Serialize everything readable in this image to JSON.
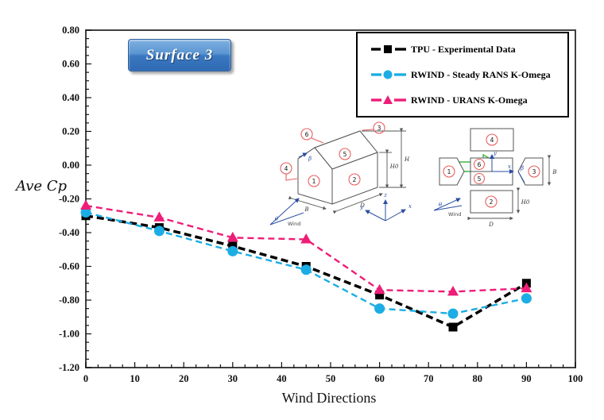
{
  "chart_data": {
    "type": "line",
    "x": [
      0,
      15,
      30,
      45,
      60,
      75,
      90
    ],
    "series": [
      {
        "name": "TPU - Experimental Data",
        "color": "#000000",
        "marker": "square",
        "values": [
          -0.3,
          -0.37,
          -0.48,
          -0.6,
          -0.77,
          -0.96,
          -0.7
        ]
      },
      {
        "name": "RWIND - Steady RANS K-Omega",
        "color": "#1CADE4",
        "marker": "circle",
        "values": [
          -0.28,
          -0.39,
          -0.51,
          -0.62,
          -0.85,
          -0.88,
          -0.79
        ]
      },
      {
        "name": "RWIND - URANS K-Omega",
        "color": "#EE1D77",
        "marker": "triangle",
        "values": [
          -0.24,
          -0.31,
          -0.43,
          -0.44,
          -0.74,
          -0.75,
          -0.73
        ]
      }
    ],
    "title": "",
    "xlabel": "Wind Directions",
    "ylabel": "Ave Cp",
    "xlim": [
      0,
      100
    ],
    "ylim": [
      -1.2,
      0.8
    ],
    "x_major_step": 10,
    "x_minor_step": 2.5,
    "y_major_step": 0.2,
    "y_minor_step": 0.05,
    "x_tick_labels": [
      "0",
      "10",
      "20",
      "30",
      "40",
      "50",
      "60",
      "70",
      "80",
      "90",
      "100"
    ],
    "y_tick_labels": [
      "0.80",
      "0.60",
      "0.40",
      "0.20",
      "0.00",
      "-0.20",
      "-0.40",
      "-0.60",
      "-0.80",
      "-1.00",
      "-1.20"
    ],
    "grid": false,
    "legend_position": "top-right"
  },
  "annotation_badge": {
    "label": "Surface 3"
  },
  "inset": {
    "house": {
      "surface_labels": [
        "1",
        "2",
        "3",
        "4",
        "5",
        "6"
      ],
      "dim_b": "B",
      "dim_d": "D",
      "dim_h0": "H0",
      "dim_h": "H",
      "angle_beta": "β",
      "angle_theta": "θ",
      "wind_label": "Wind",
      "axis_x": "x",
      "axis_y": "y",
      "axis_z": "z"
    },
    "unfolded": {
      "surface_labels": [
        "1",
        "2",
        "3",
        "4",
        "5",
        "6"
      ],
      "dim_b": "B",
      "dim_d": "D",
      "dim_h0": "H0",
      "angle_beta": "β",
      "angle_theta": "θ",
      "wind_label": "Wind",
      "axis_x": "x",
      "axis_y": "y"
    }
  },
  "colors": {
    "tpu": "#000000",
    "steady": "#1CADE4",
    "urans": "#EE1D77",
    "badge_top": "#7FB0E0",
    "badge_bottom": "#2F6AB3",
    "badge_border": "#2B5D9B",
    "frame": "#404040",
    "inset_red": "#E86060",
    "inset_blue": "#2B4EA2",
    "inset_green": "#44B449"
  }
}
